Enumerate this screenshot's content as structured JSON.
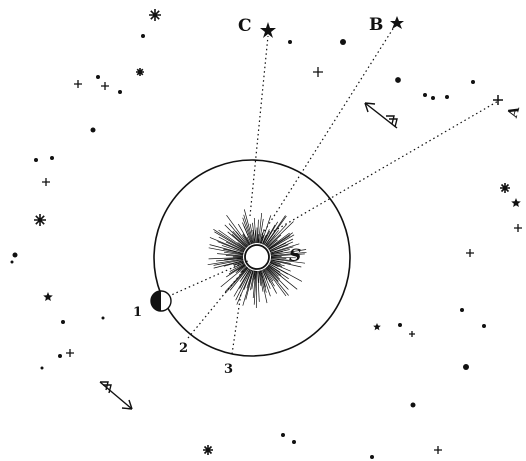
{
  "labels": {
    "star_c": "C",
    "star_b": "B",
    "star_a": "A",
    "sun": "S",
    "pos_1": "1",
    "pos_2": "2",
    "pos_3": "3"
  },
  "icons": [
    "star-icon",
    "plus-star-icon",
    "dot-star-icon",
    "asterisk-star-icon",
    "arrow-icon"
  ]
}
